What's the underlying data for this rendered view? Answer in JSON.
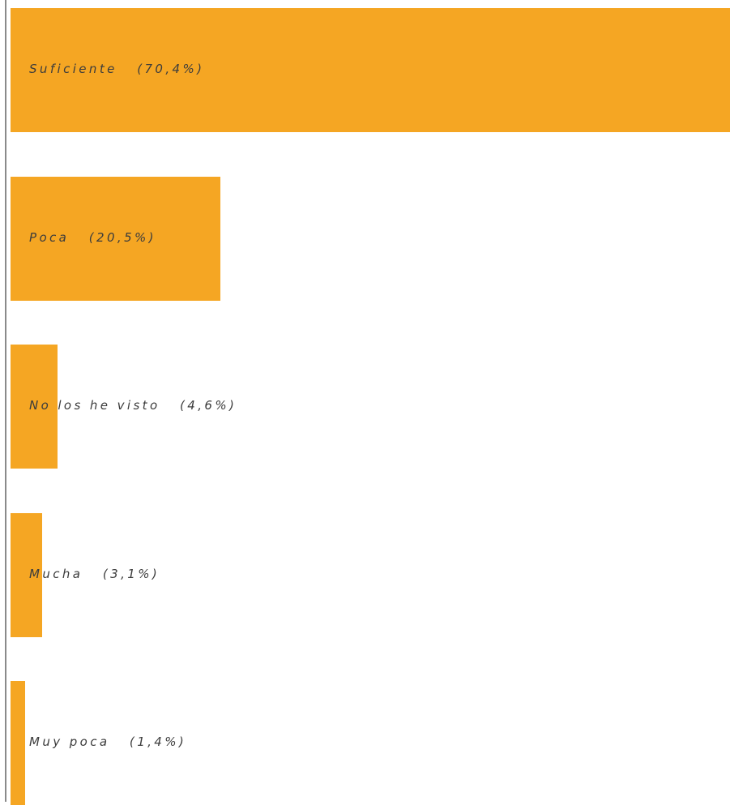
{
  "chart_data": {
    "type": "bar",
    "orientation": "horizontal",
    "categories": [
      "Suficiente",
      "Poca",
      "No los he visto",
      "Mucha",
      "Muy poca"
    ],
    "values": [
      70.4,
      20.5,
      4.6,
      3.1,
      1.4
    ],
    "unit": "%",
    "labels": [
      "Suficiente   (70,4%)",
      "Poca   (20,5%)",
      "No los he visto   (4,6%)",
      "Mucha   (3,1%)",
      "Muy poca   (1,4%)"
    ],
    "xlim": [
      0,
      70.4
    ],
    "grid": false,
    "legend": "none",
    "bar_color": "#F5A623",
    "axis_color": "#8a8a8a",
    "label_color": "#3c3c3c"
  }
}
